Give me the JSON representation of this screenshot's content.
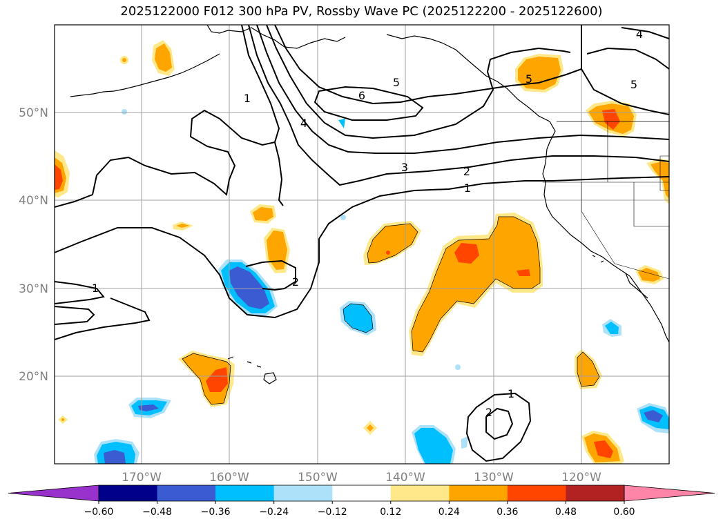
{
  "title": "2025122000 F012 300 hPa PV, Rossby Wave PC (2025122200 - 2025122600)",
  "lat_labels": [
    "50°N",
    "40°N",
    "30°N",
    "20°N"
  ],
  "lon_labels": [
    "170°W",
    "160°W",
    "150°W",
    "140°W",
    "130°W",
    "120°W"
  ],
  "contour_labels": [
    "1",
    "4",
    "6",
    "5",
    "3",
    "2",
    "1",
    "2",
    "1",
    "1",
    "2",
    "4",
    "5",
    "5"
  ],
  "colorbar": {
    "ticks": [
      "−0.60",
      "−0.48",
      "−0.36",
      "−0.24",
      "−0.12",
      "0.12",
      "0.24",
      "0.36",
      "0.48",
      "0.60"
    ],
    "colors": [
      "#9932CC",
      "#00008B",
      "#3A5BD1",
      "#00BFFF",
      "#ADE1FA",
      "#FFFFFF",
      "#FFE88A",
      "#FFA500",
      "#FF4500",
      "#B22222",
      "#FF85A8"
    ]
  },
  "colors": {
    "orange": "#FFA500",
    "light_orange": "#FFE88A",
    "red_orange": "#FF4500",
    "blue": "#3A5BD1",
    "cyan": "#00BFFF",
    "light_blue": "#ADE1FA",
    "grid": "#A0A0A0"
  }
}
